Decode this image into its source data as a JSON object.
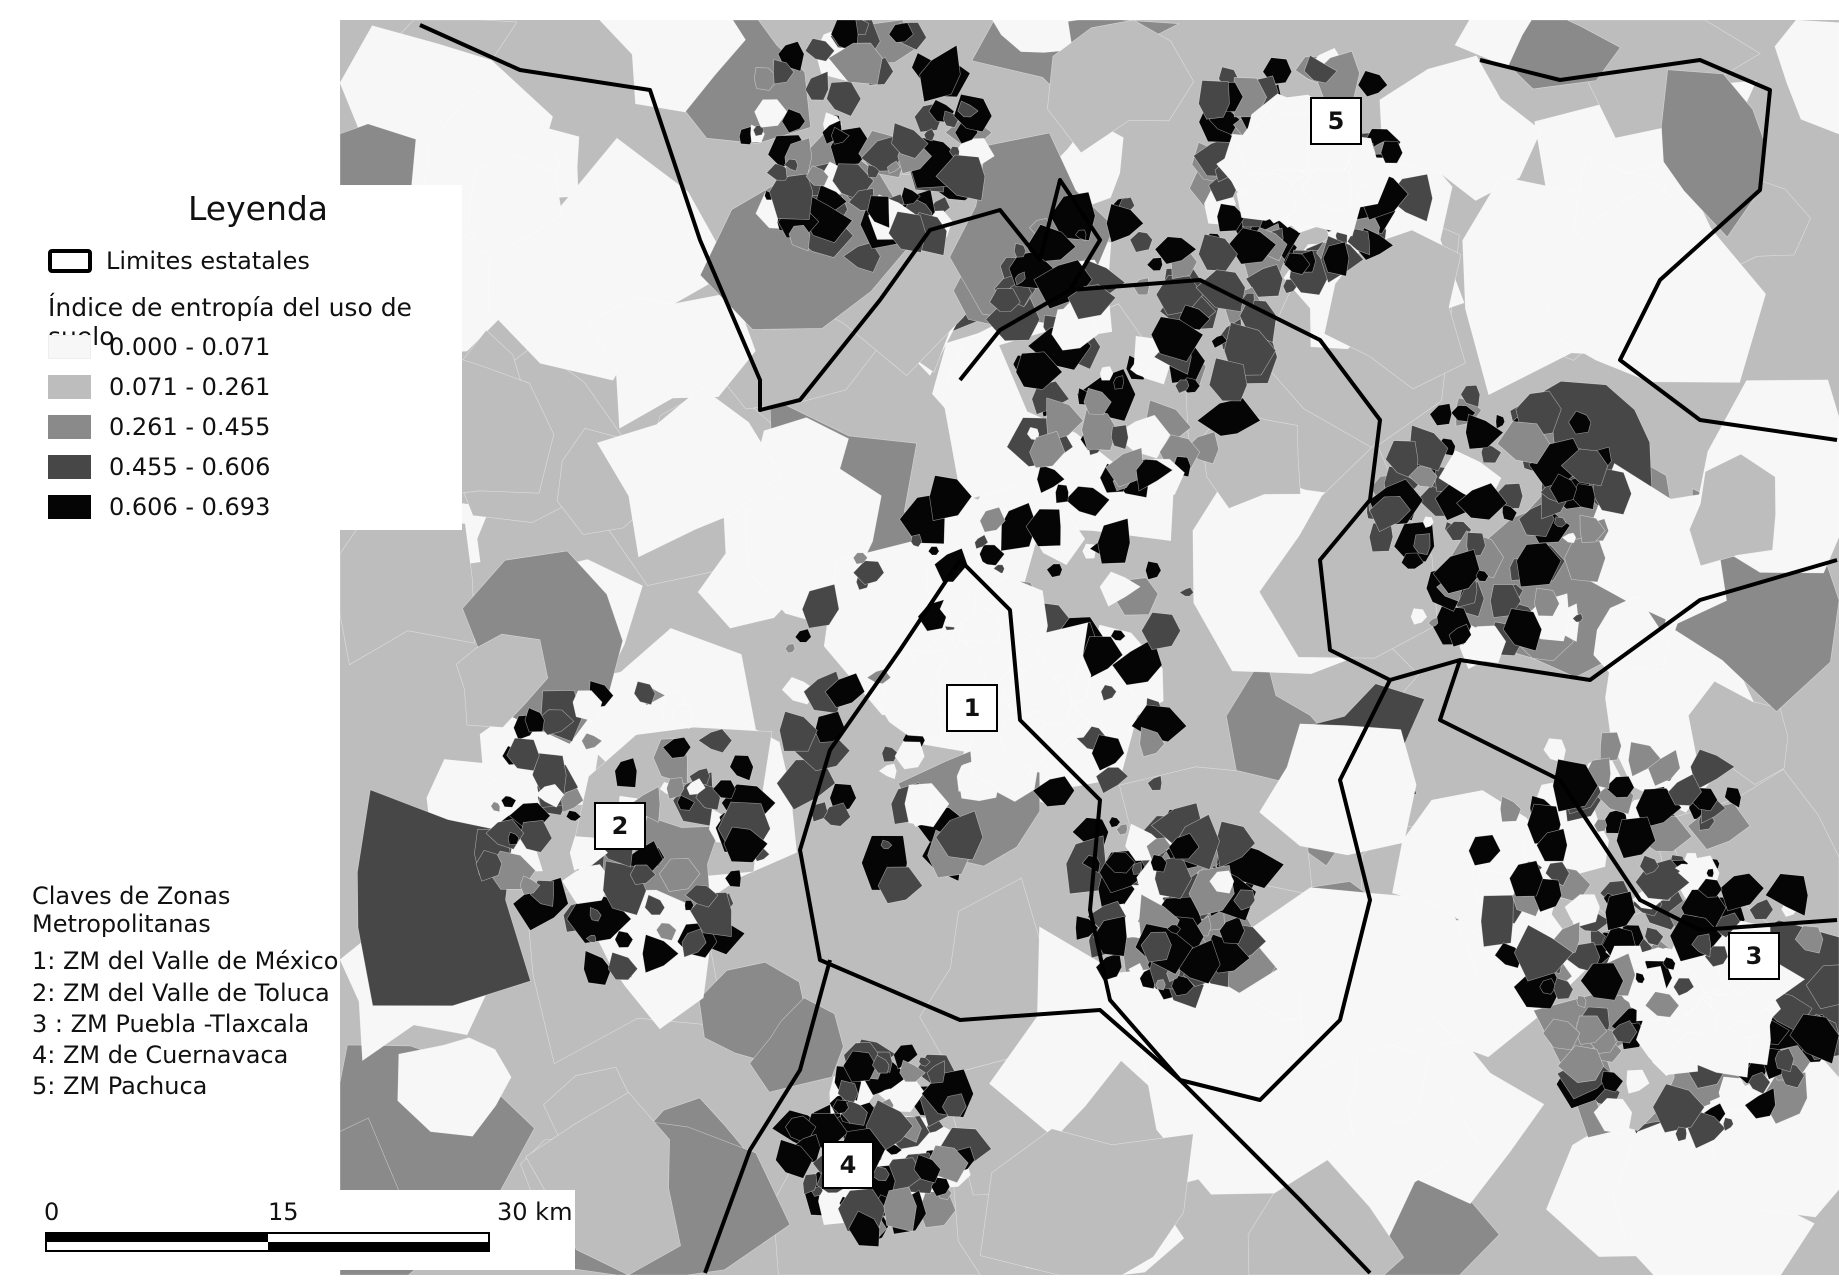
{
  "legend": {
    "title": "Leyenda",
    "state_boundary_label": "Limites estatales",
    "index_title": "Índice de entropía del uso de suelo",
    "classes": [
      {
        "range": "0.000 - 0.071",
        "color": "#f7f7f7"
      },
      {
        "range": "0.071 - 0.261",
        "color": "#bdbdbd"
      },
      {
        "range": "0.261 - 0.455",
        "color": "#8a8a8a"
      },
      {
        "range": "0.455 - 0.606",
        "color": "#474747"
      },
      {
        "range": "0.606 - 0.693",
        "color": "#050505"
      }
    ]
  },
  "claves": {
    "title": "Claves de Zonas Metropolitanas",
    "items": [
      "1:  ZM del Valle de México",
      "2:  ZM del Valle de Toluca",
      "3 : ZM Puebla -Tlaxcala",
      "4: ZM de Cuernavaca",
      "5: ZM Pachuca"
    ]
  },
  "scale_bar": {
    "labels": [
      "0",
      "15",
      "30 km"
    ]
  },
  "map_labels": [
    "1",
    "2",
    "3",
    "4",
    "5"
  ]
}
